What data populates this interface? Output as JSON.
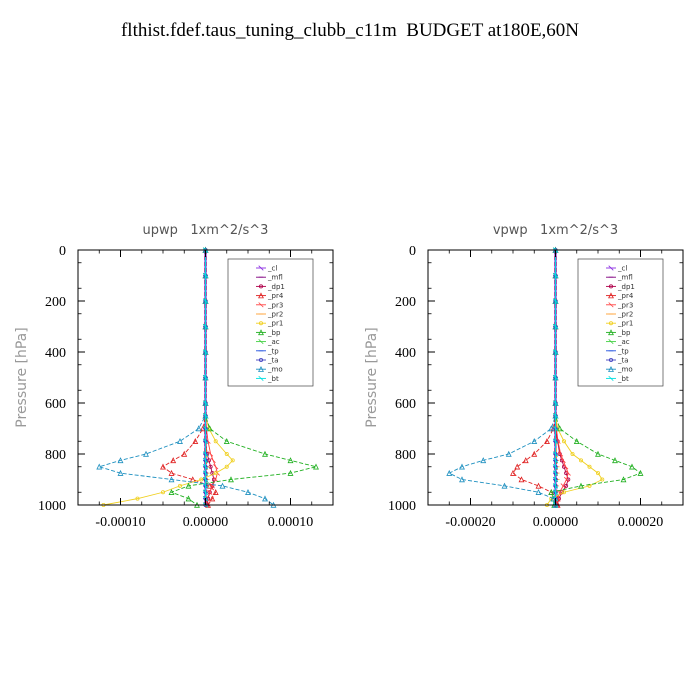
{
  "page_title": "flthist.fdef.taus_tuning_clubb_c11m  BUDGET at180E,60N",
  "series_styles": [
    {
      "name": "_cl",
      "color": "#8a2be2"
    },
    {
      "name": "_mfl",
      "color": "#800080"
    },
    {
      "name": "_dp1",
      "color": "#b0004a"
    },
    {
      "name": "_pr4",
      "color": "#e02020"
    },
    {
      "name": "_pr3",
      "color": "#ff4040"
    },
    {
      "name": "_pr2",
      "color": "#ffa030"
    },
    {
      "name": "_pr1",
      "color": "#f0d020"
    },
    {
      "name": "_bp",
      "color": "#20b020"
    },
    {
      "name": "_ac",
      "color": "#40d040"
    },
    {
      "name": "_tp",
      "color": "#2050e0"
    },
    {
      "name": "_ta",
      "color": "#4040c0"
    },
    {
      "name": "_mo",
      "color": "#1e90c0"
    },
    {
      "name": "_bt",
      "color": "#00e0e0"
    }
  ],
  "chart_data": [
    {
      "type": "line",
      "title": "upwp   1xm^2/s^3",
      "ylabel": "Pressure [hPa]",
      "xlim": [
        -0.00015,
        0.00015
      ],
      "ylim": [
        1000,
        0
      ],
      "xticks": [
        -0.0001,
        0,
        0.0001
      ],
      "xtick_labels": [
        "-0.00010",
        "0.00000",
        "0.00010"
      ],
      "yticks": [
        0,
        200,
        400,
        600,
        800,
        1000
      ],
      "ytick_labels": [
        "0",
        "200",
        "400",
        "600",
        "800",
        "1000"
      ],
      "legend_position": "top-right",
      "levels": [
        0,
        100,
        200,
        300,
        400,
        500,
        600,
        650,
        700,
        750,
        800,
        825,
        850,
        875,
        900,
        925,
        950,
        975,
        1000
      ],
      "series": [
        {
          "name": "_cl",
          "values": [
            0,
            0,
            0,
            0,
            0,
            0,
            0,
            0,
            0,
            0,
            0,
            0,
            0,
            0,
            0,
            0,
            0,
            0,
            0
          ]
        },
        {
          "name": "_mfl",
          "values": [
            0,
            0,
            0,
            0,
            0,
            0,
            0,
            0,
            0,
            0,
            0,
            0,
            0,
            0,
            0,
            0,
            0,
            0,
            0
          ]
        },
        {
          "name": "_dp1",
          "values": [
            0,
            0,
            0,
            0,
            0,
            0,
            0,
            0,
            0,
            0,
            2e-06,
            4e-06,
            6e-06,
            8e-06,
            1e-05,
            8e-06,
            5e-06,
            3e-06,
            2e-06
          ]
        },
        {
          "name": "_pr4",
          "values": [
            0,
            0,
            0,
            0,
            0,
            0,
            0,
            0,
            -3e-06,
            -1.2e-05,
            -2.5e-05,
            -3.8e-05,
            -5e-05,
            -4e-05,
            -1.5e-05,
            5e-06,
            1.2e-05,
            8e-06,
            3e-06
          ]
        },
        {
          "name": "_pr3",
          "values": [
            0,
            0,
            0,
            0,
            0,
            0,
            0,
            0,
            1e-06,
            3e-06,
            6e-06,
            9e-06,
            1.2e-05,
            1.4e-05,
            1.2e-05,
            8e-06,
            5e-06,
            2e-06,
            1e-06
          ]
        },
        {
          "name": "_pr2",
          "values": [
            0,
            0,
            0,
            0,
            0,
            0,
            0,
            0,
            0,
            0,
            1e-06,
            1e-06,
            2e-06,
            2e-06,
            2e-06,
            2e-06,
            1e-06,
            1e-06,
            0
          ]
        },
        {
          "name": "_pr1",
          "values": [
            0,
            0,
            0,
            0,
            0,
            0,
            0,
            0,
            4e-06,
            1.2e-05,
            2.5e-05,
            3.2e-05,
            2.5e-05,
            1.2e-05,
            -5e-06,
            -3e-05,
            -5e-05,
            -8e-05,
            -0.00012
          ]
        },
        {
          "name": "_bp",
          "values": [
            0,
            0,
            0,
            0,
            0,
            0,
            0,
            0,
            5e-06,
            2.5e-05,
            7e-05,
            0.0001,
            0.00013,
            0.0001,
            3e-05,
            -2e-05,
            -4e-05,
            -2e-05,
            -1e-05
          ]
        },
        {
          "name": "_ac",
          "values": [
            0,
            0,
            0,
            0,
            0,
            0,
            0,
            0,
            0,
            0,
            0,
            0,
            0,
            0,
            0,
            0,
            0,
            0,
            0
          ]
        },
        {
          "name": "_tp",
          "values": [
            0,
            0,
            0,
            0,
            0,
            0,
            0,
            0,
            0,
            0,
            0,
            0,
            0,
            0,
            0,
            0,
            0,
            0,
            0
          ]
        },
        {
          "name": "_ta",
          "values": [
            0,
            0,
            0,
            0,
            0,
            0,
            0,
            0,
            0,
            0,
            0,
            0,
            0,
            0,
            0,
            0,
            0,
            0,
            0
          ]
        },
        {
          "name": "_mo",
          "values": [
            0,
            0,
            0,
            0,
            0,
            0,
            0,
            0,
            -8e-06,
            -3e-05,
            -7e-05,
            -0.0001,
            -0.000125,
            -0.0001,
            -4e-05,
            2e-05,
            5e-05,
            7e-05,
            8e-05
          ]
        },
        {
          "name": "_bt",
          "values": [
            0,
            0,
            0,
            0,
            0,
            0,
            0,
            0,
            0,
            0,
            0,
            0,
            0,
            0,
            0,
            0,
            0,
            0,
            0
          ]
        }
      ]
    },
    {
      "type": "line",
      "title": "vpwp   1xm^2/s^3",
      "ylabel": "Pressure [hPa]",
      "xlim": [
        -0.0003,
        0.0003
      ],
      "ylim": [
        1000,
        0
      ],
      "xticks": [
        -0.0002,
        0,
        0.0002
      ],
      "xtick_labels": [
        "-0.00020",
        "0.00000",
        "0.00020"
      ],
      "yticks": [
        0,
        200,
        400,
        600,
        800,
        1000
      ],
      "ytick_labels": [
        "0",
        "200",
        "400",
        "600",
        "800",
        "1000"
      ],
      "legend_position": "top-right",
      "levels": [
        0,
        100,
        200,
        300,
        400,
        500,
        600,
        650,
        700,
        750,
        800,
        825,
        850,
        875,
        900,
        925,
        950,
        975,
        1000
      ],
      "series": [
        {
          "name": "_cl",
          "values": [
            0,
            0,
            0,
            0,
            0,
            0,
            0,
            0,
            0,
            0,
            0,
            0,
            0,
            0,
            0,
            0,
            0,
            0,
            0
          ]
        },
        {
          "name": "_mfl",
          "values": [
            0,
            0,
            0,
            0,
            0,
            0,
            0,
            0,
            0,
            0,
            0,
            0,
            0,
            0,
            0,
            0,
            0,
            0,
            0
          ]
        },
        {
          "name": "_dp1",
          "values": [
            0,
            0,
            0,
            0,
            0,
            0,
            0,
            0,
            0,
            5e-06,
            1e-05,
            1.5e-05,
            2e-05,
            2.5e-05,
            3e-05,
            2.5e-05,
            1.5e-05,
            8e-06,
            4e-06
          ]
        },
        {
          "name": "_pr4",
          "values": [
            0,
            0,
            0,
            0,
            0,
            0,
            0,
            0,
            -5e-06,
            -2e-05,
            -5e-05,
            -7e-05,
            -9e-05,
            -0.0001,
            -8e-05,
            -4e-05,
            -1e-05,
            5e-06,
            5e-06
          ]
        },
        {
          "name": "_pr3",
          "values": [
            0,
            0,
            0,
            0,
            0,
            0,
            0,
            0,
            2e-06,
            6e-06,
            1.2e-05,
            1.8e-05,
            2.4e-05,
            3e-05,
            2.6e-05,
            1.8e-05,
            1e-05,
            5e-06,
            2e-06
          ]
        },
        {
          "name": "_pr2",
          "values": [
            0,
            0,
            0,
            0,
            0,
            0,
            0,
            0,
            0,
            1e-06,
            2e-06,
            3e-06,
            4e-06,
            4e-06,
            4e-06,
            3e-06,
            2e-06,
            1e-06,
            0
          ]
        },
        {
          "name": "_pr1",
          "values": [
            0,
            0,
            0,
            0,
            0,
            0,
            0,
            0,
            5e-06,
            2e-05,
            4e-05,
            6e-05,
            8e-05,
            0.0001,
            0.00011,
            8e-05,
            2e-05,
            -1e-05,
            -2e-05
          ]
        },
        {
          "name": "_bp",
          "values": [
            0,
            0,
            0,
            0,
            0,
            0,
            0,
            0,
            1e-05,
            5e-05,
            0.0001,
            0.00014,
            0.00018,
            0.0002,
            0.00016,
            6e-05,
            -1e-05,
            -5e-06,
            -3e-06
          ]
        },
        {
          "name": "_ac",
          "values": [
            0,
            0,
            0,
            0,
            0,
            0,
            0,
            0,
            0,
            0,
            0,
            0,
            0,
            0,
            0,
            0,
            0,
            0,
            0
          ]
        },
        {
          "name": "_tp",
          "values": [
            0,
            0,
            0,
            0,
            0,
            0,
            0,
            0,
            0,
            0,
            0,
            0,
            0,
            0,
            0,
            0,
            0,
            0,
            0
          ]
        },
        {
          "name": "_ta",
          "values": [
            0,
            0,
            0,
            0,
            0,
            0,
            0,
            0,
            0,
            0,
            0,
            0,
            0,
            0,
            0,
            0,
            0,
            0,
            0
          ]
        },
        {
          "name": "_mo",
          "values": [
            0,
            0,
            0,
            0,
            0,
            0,
            0,
            0,
            -1e-05,
            -5e-05,
            -0.00011,
            -0.00017,
            -0.00022,
            -0.00025,
            -0.00022,
            -0.00012,
            -4e-05,
            -5e-06,
            0
          ]
        },
        {
          "name": "_bt",
          "values": [
            0,
            0,
            0,
            0,
            0,
            0,
            0,
            0,
            0,
            0,
            0,
            0,
            0,
            0,
            0,
            0,
            0,
            0,
            0
          ]
        }
      ]
    }
  ]
}
